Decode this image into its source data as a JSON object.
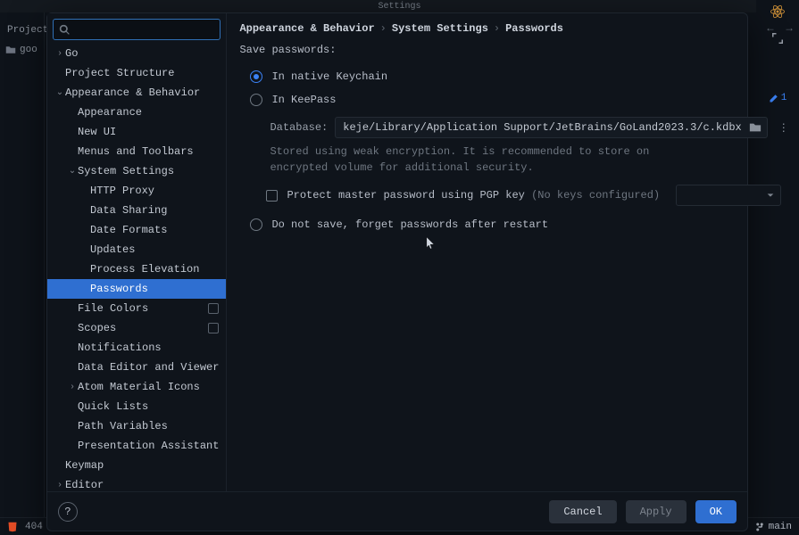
{
  "ide": {
    "title_partial": "Settings",
    "left_label": "Project",
    "left_sub": "goo",
    "bottom_status": "404",
    "branch": "main",
    "right_badge": "1"
  },
  "search": {
    "placeholder": ""
  },
  "tree": [
    {
      "label": "Go",
      "depth": 0,
      "expand": "closed"
    },
    {
      "label": "Project Structure",
      "depth": 0
    },
    {
      "label": "Appearance & Behavior",
      "depth": 0,
      "expand": "open"
    },
    {
      "label": "Appearance",
      "depth": 1
    },
    {
      "label": "New UI",
      "depth": 1
    },
    {
      "label": "Menus and Toolbars",
      "depth": 1
    },
    {
      "label": "System Settings",
      "depth": 1,
      "expand": "open"
    },
    {
      "label": "HTTP Proxy",
      "depth": 2
    },
    {
      "label": "Data Sharing",
      "depth": 2
    },
    {
      "label": "Date Formats",
      "depth": 2
    },
    {
      "label": "Updates",
      "depth": 2
    },
    {
      "label": "Process Elevation",
      "depth": 2
    },
    {
      "label": "Passwords",
      "depth": 2,
      "selected": true
    },
    {
      "label": "File Colors",
      "depth": 1,
      "badge": true
    },
    {
      "label": "Scopes",
      "depth": 1,
      "badge": true
    },
    {
      "label": "Notifications",
      "depth": 1
    },
    {
      "label": "Data Editor and Viewer",
      "depth": 1
    },
    {
      "label": "Atom Material Icons",
      "depth": 1,
      "expand": "closed"
    },
    {
      "label": "Quick Lists",
      "depth": 1
    },
    {
      "label": "Path Variables",
      "depth": 1
    },
    {
      "label": "Presentation Assistant",
      "depth": 1
    },
    {
      "label": "Keymap",
      "depth": 0
    },
    {
      "label": "Editor",
      "depth": 0,
      "expand": "closed"
    }
  ],
  "breadcrumbs": [
    "Appearance & Behavior",
    "System Settings",
    "Passwords"
  ],
  "panel": {
    "section_title": "Save passwords:",
    "radio1": "In native Keychain",
    "radio2": "In KeePass",
    "radio3": "Do not save, forget passwords after restart",
    "selected_radio": 1,
    "db_label": "Database:",
    "db_value": "keje/Library/Application Support/JetBrains/GoLand2023.3/c.kdbx",
    "db_note": "Stored using weak encryption. It is recommended to store on encrypted volume for additional security.",
    "pgp_label": "Protect master password using PGP key ",
    "pgp_hint": "(No keys configured)"
  },
  "buttons": {
    "cancel": "Cancel",
    "apply": "Apply",
    "ok": "OK"
  },
  "colors": {
    "accent": "#2f6fd1",
    "bg": "#0f141b",
    "text": "#c3c9d2",
    "muted": "#6e7680",
    "border": "#1b222b"
  }
}
